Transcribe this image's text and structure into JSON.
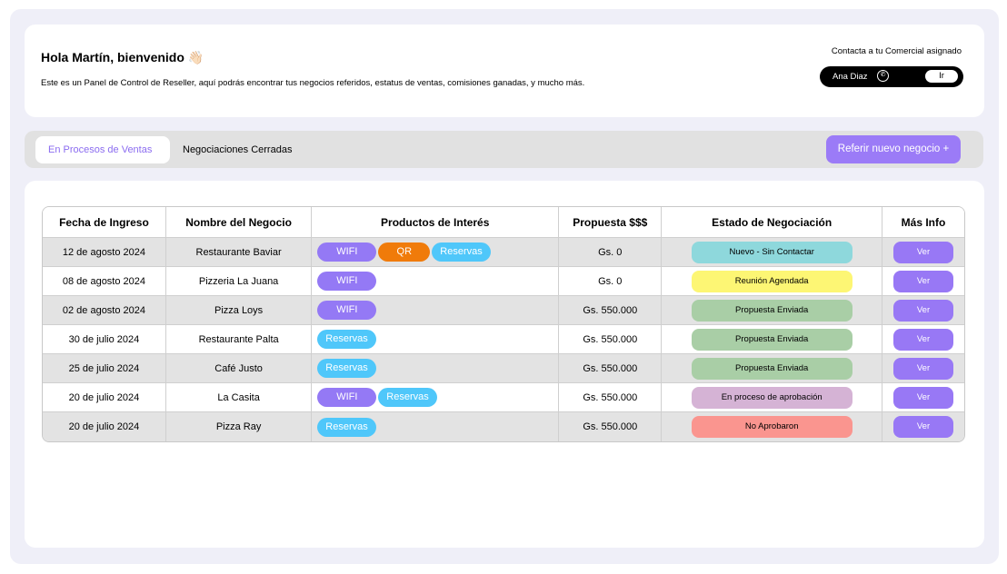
{
  "header": {
    "greeting": "Hola Martín, bienvenido 👋🏻",
    "description": "Este es un Panel de Control de Reseller, aquí podrás encontrar tus negocios referidos, estatus de ventas, comisiones ganadas, y mucho más.",
    "contact_title": "Contacta a tu Comercial asignado",
    "contact_name": "Ana Diaz",
    "contact_icon": "whatsapp-icon",
    "go_label": "Ir"
  },
  "tabs": [
    {
      "label": "En Procesos de Ventas",
      "active": true
    },
    {
      "label": "Negociaciones Cerradas",
      "active": false
    }
  ],
  "refer_button": "Referir nuevo negocio  +",
  "table": {
    "columns": [
      "Fecha de Ingreso",
      "Nombre del Negocio",
      "Productos de Interés",
      "Propuesta $$$",
      "Estado de Negociación",
      "Más Info"
    ],
    "product_colors": {
      "WIFI": "#9479f5",
      "QR": "#f07b0a",
      "Reservas": "#4fc7fa"
    },
    "rows": [
      {
        "date": "12 de agosto 2024",
        "name": "Restaurante Baviar",
        "products": [
          "WIFI",
          "QR",
          "Reservas"
        ],
        "proposal": "Gs. 0",
        "status": "Nuevo - Sin Contactar",
        "status_color": "#8ed8dc",
        "action": "Ver"
      },
      {
        "date": "08 de agosto 2024",
        "name": "Pizzeria La Juana",
        "products": [
          "WIFI"
        ],
        "proposal": "Gs. 0",
        "status": "Reunión Agendada",
        "status_color": "#fdf674",
        "action": "Ver"
      },
      {
        "date": "02 de agosto 2024",
        "name": "Pizza Loys",
        "products": [
          "WIFI"
        ],
        "proposal": "Gs. 550.000",
        "status": "Propuesta Enviada",
        "status_color": "#a9cea6",
        "action": "Ver"
      },
      {
        "date": "30 de julio 2024",
        "name": "Restaurante Palta",
        "products": [
          "Reservas"
        ],
        "proposal": "Gs. 550.000",
        "status": "Propuesta Enviada",
        "status_color": "#a9cea6",
        "action": "Ver"
      },
      {
        "date": "25 de julio 2024",
        "name": "Café Justo",
        "products": [
          "Reservas"
        ],
        "proposal": "Gs. 550.000",
        "status": "Propuesta Enviada",
        "status_color": "#a9cea6",
        "action": "Ver"
      },
      {
        "date": "20 de julio 2024",
        "name": "La Casita",
        "products": [
          "WIFI",
          "Reservas"
        ],
        "proposal": "Gs. 550.000",
        "status": "En proceso de aprobación",
        "status_color": "#d5b3d5",
        "action": "Ver"
      },
      {
        "date": "20 de julio 2024",
        "name": "Pizza Ray",
        "products": [
          "Reservas"
        ],
        "proposal": "Gs. 550.000",
        "status": "No Aprobaron",
        "status_color": "#fa958f",
        "action": "Ver"
      }
    ]
  }
}
